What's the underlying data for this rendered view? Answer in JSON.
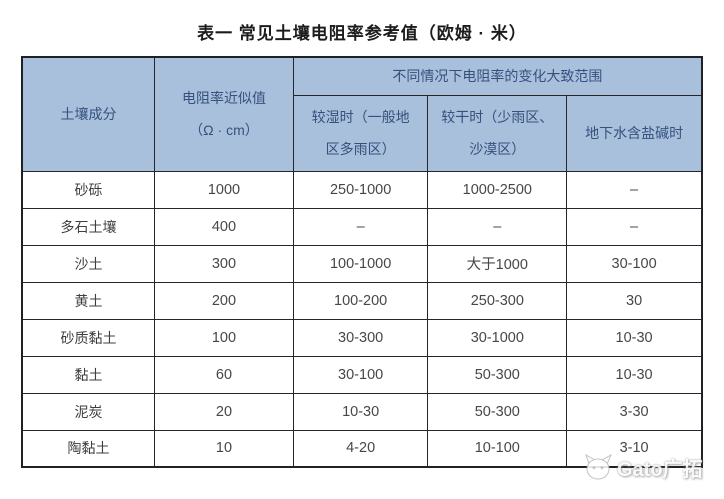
{
  "title": "表一  常见土壤电阻率参考值（欧姆 · 米）",
  "table": {
    "header": {
      "soil_label": "土壤成分",
      "approx_line1": "电阻率近似值",
      "approx_line2": "（Ω · cm）",
      "range_span_label": "不同情况下电阻率的变化大致范围",
      "wet_line1": "较湿时（一般地",
      "wet_line2": "区多雨区）",
      "dry_line1": "较干时（少雨区、",
      "dry_line2": "沙漠区）",
      "saline_label": "地下水含盐碱时"
    },
    "rows": [
      {
        "soil": "砂砾",
        "approx": "1000",
        "wet": "250-1000",
        "dry": "1000-2500",
        "saline": "–"
      },
      {
        "soil": "多石土壤",
        "approx": "400",
        "wet": "–",
        "dry": "–",
        "saline": "–"
      },
      {
        "soil": "沙土",
        "approx": "300",
        "wet": "100-1000",
        "dry": "大于1000",
        "saline": "30-100"
      },
      {
        "soil": "黄土",
        "approx": "200",
        "wet": "100-200",
        "dry": "250-300",
        "saline": "30"
      },
      {
        "soil": "砂质黏土",
        "approx": "100",
        "wet": "30-300",
        "dry": "30-1000",
        "saline": "10-30"
      },
      {
        "soil": "黏土",
        "approx": "60",
        "wet": "30-100",
        "dry": "50-300",
        "saline": "10-30"
      },
      {
        "soil": "泥炭",
        "approx": "20",
        "wet": "10-30",
        "dry": "50-300",
        "saline": "3-30"
      },
      {
        "soil": "陶黏土",
        "approx": "10",
        "wet": "4-20",
        "dry": "10-100",
        "saline": "3-10"
      }
    ]
  },
  "watermark": {
    "text": "Gato广拓",
    "icon": "cat-logo-icon"
  },
  "colors": {
    "header_bg": "#a9c0dd",
    "header_text": "#35517c",
    "body_text": "#474747",
    "border": "#23262b",
    "title_text": "#1c1c1c",
    "page_bg": "#ffffff"
  }
}
